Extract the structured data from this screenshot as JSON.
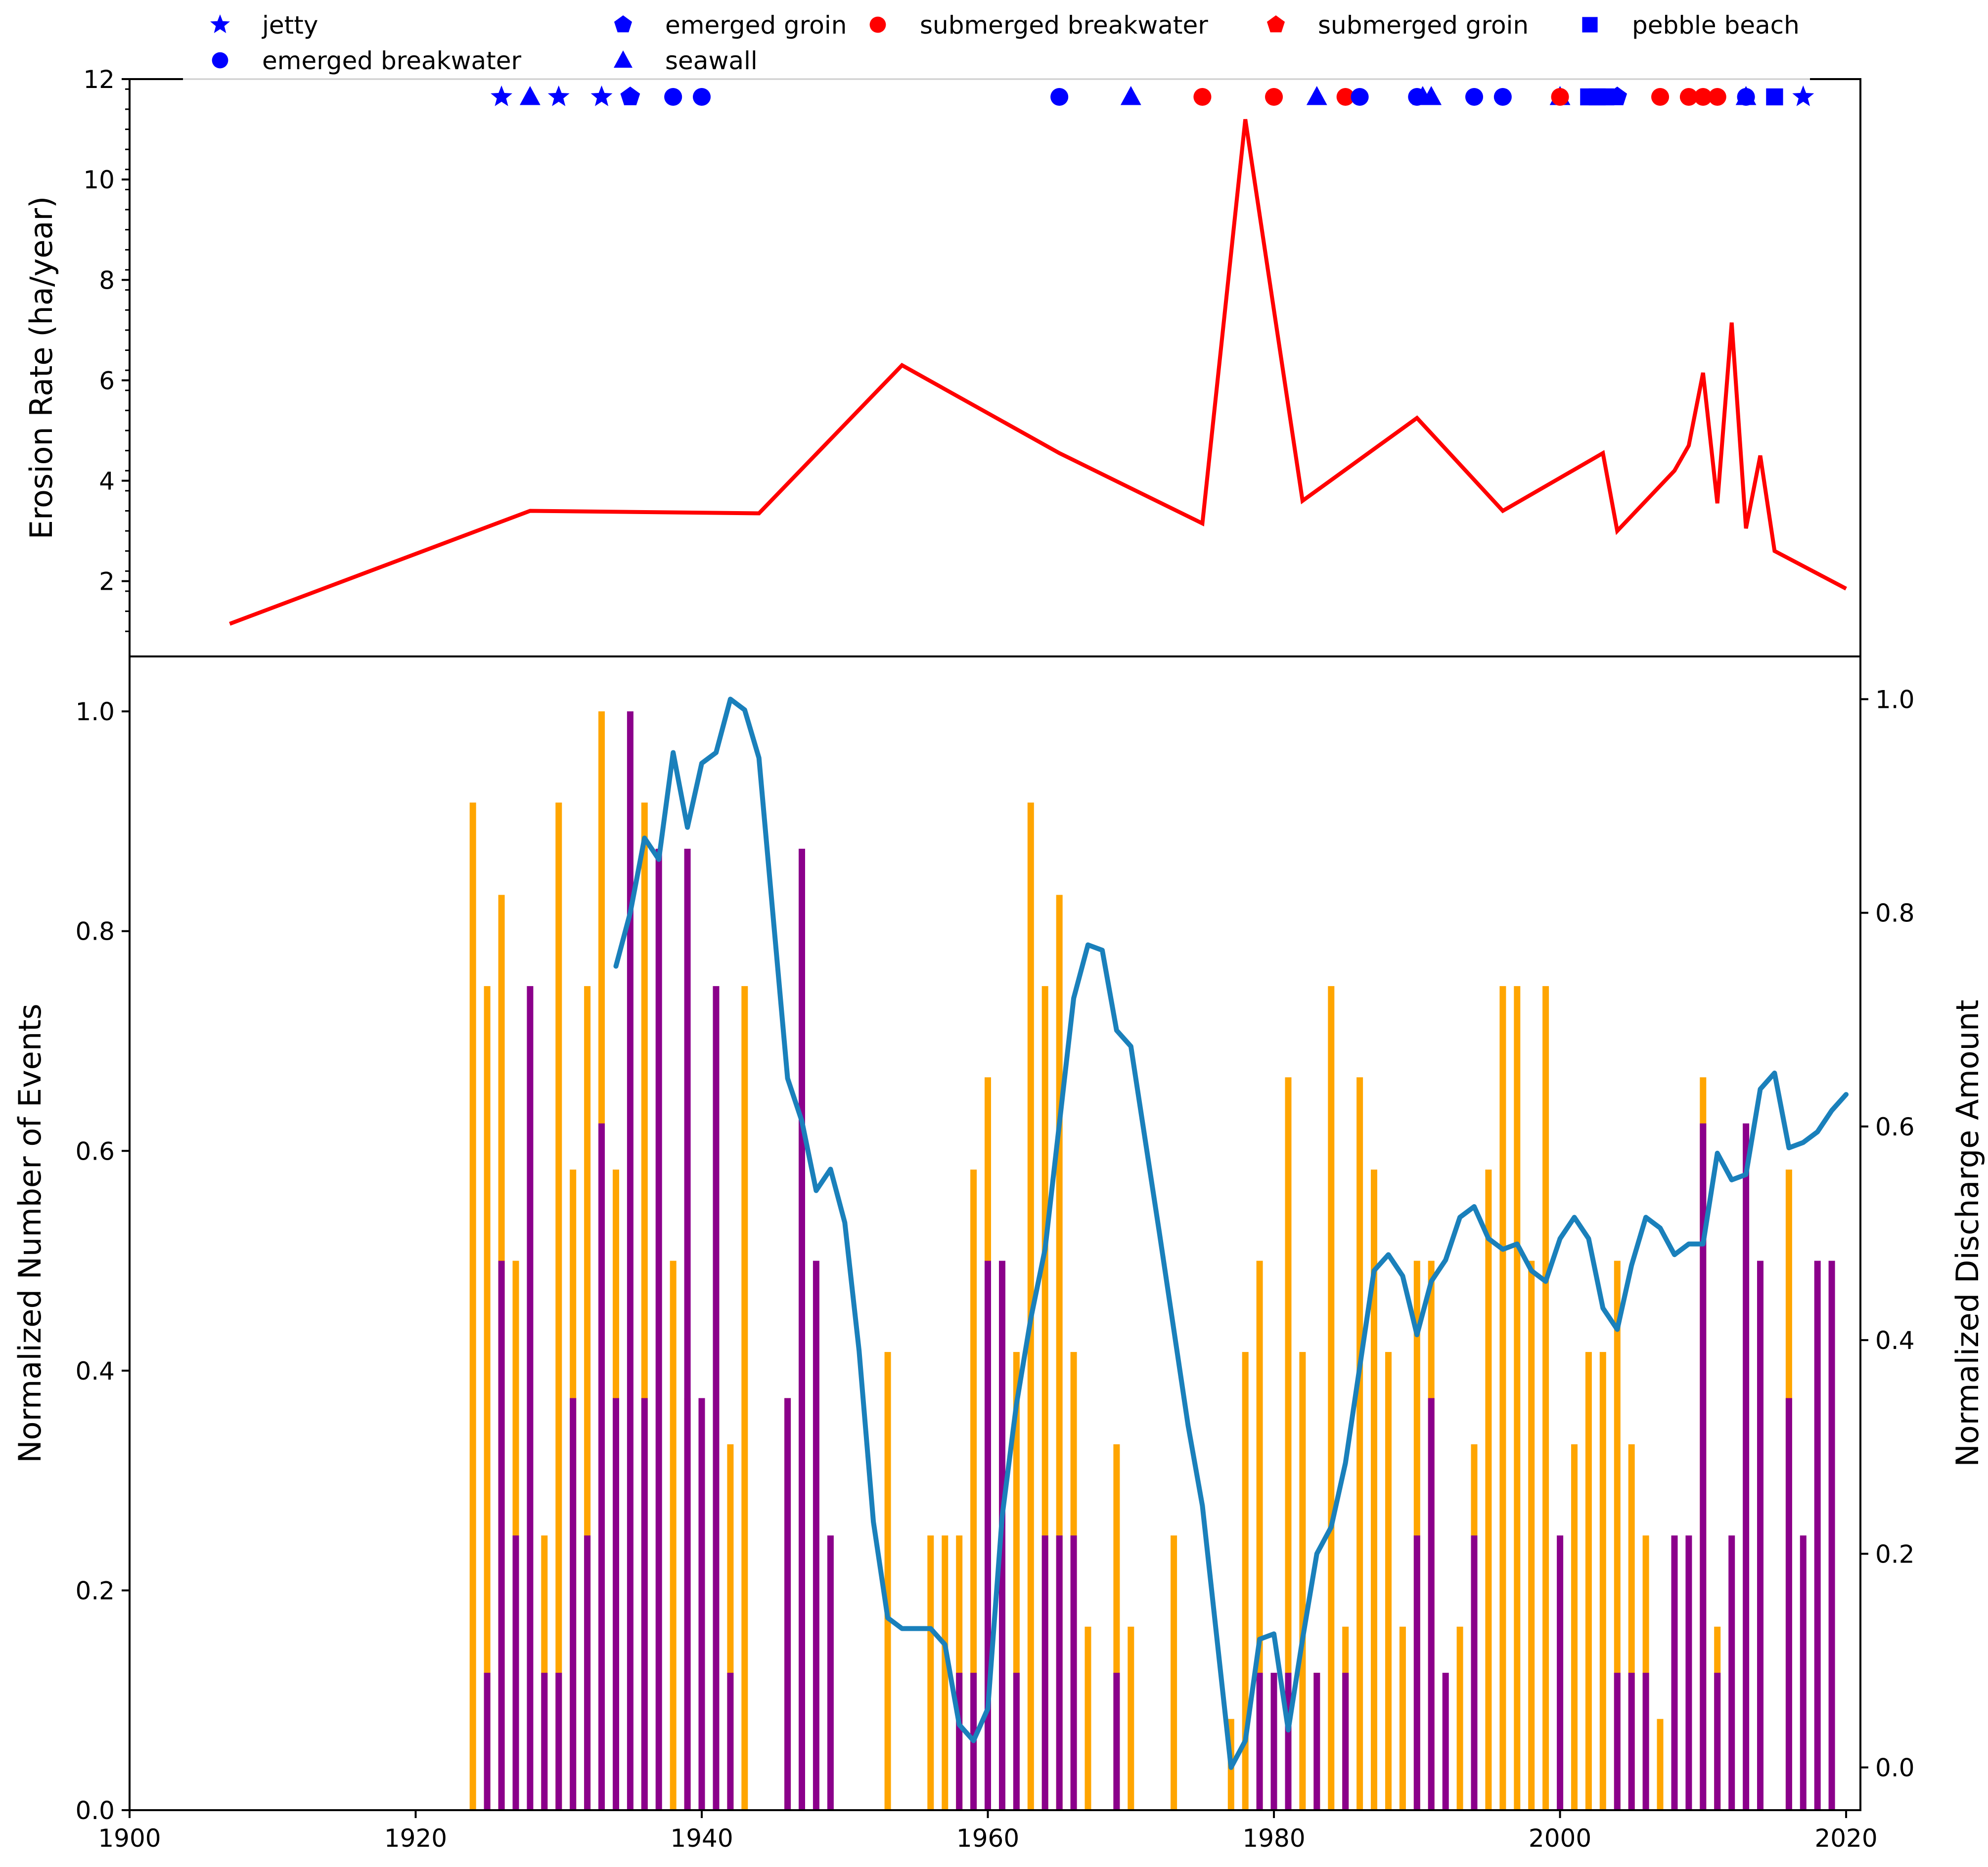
{
  "colors": {
    "structure_blue": "#0000ff",
    "structure_red": "#ff0000",
    "erosion_line": "#ff0000",
    "bar_orange": "#ffa500",
    "bar_purple": "#8b008b",
    "discharge_line": "#1a80bb"
  },
  "chart_data": [
    {
      "type": "line",
      "role": "top-panel",
      "ylabel": "Erosion Rate (ha/year)",
      "xlim": [
        1900,
        2021
      ],
      "ylim": [
        0.5,
        12
      ],
      "yticks": [
        2,
        4,
        6,
        8,
        10,
        12
      ],
      "legend_position": "top, above the plot",
      "legend": [
        {
          "name": "jetty",
          "marker": "star",
          "color": "#0000ff"
        },
        {
          "name": "emerged breakwater",
          "marker": "circle",
          "color": "#0000ff"
        },
        {
          "name": "emerged groin",
          "marker": "pentagon",
          "color": "#0000ff"
        },
        {
          "name": "seawall",
          "marker": "triangle",
          "color": "#0000ff"
        },
        {
          "name": "submerged breakwater",
          "marker": "circle",
          "color": "#ff0000"
        },
        {
          "name": "submerged groin",
          "marker": "pentagon",
          "color": "#ff0000"
        },
        {
          "name": "pebble beach",
          "marker": "square",
          "color": "#0000ff"
        }
      ],
      "series": [
        {
          "name": "Erosion Rate",
          "x": [
            1907,
            1928,
            1944,
            1954,
            1965,
            1975,
            1978,
            1982,
            1990,
            1996,
            2003,
            2004,
            2008,
            2009,
            2010,
            2011,
            2012,
            2013,
            2014,
            2015,
            2020
          ],
          "y": [
            1.15,
            3.4,
            3.35,
            6.3,
            4.55,
            3.15,
            11.2,
            3.6,
            5.25,
            3.4,
            4.55,
            3.0,
            4.2,
            4.7,
            6.15,
            3.55,
            7.15,
            3.05,
            4.5,
            2.6,
            1.85
          ]
        }
      ],
      "structures": [
        {
          "year": 1926,
          "type": "jetty"
        },
        {
          "year": 1928,
          "type": "seawall"
        },
        {
          "year": 1930,
          "type": "jetty"
        },
        {
          "year": 1933,
          "type": "jetty"
        },
        {
          "year": 1935,
          "type": "emerged groin"
        },
        {
          "year": 1938,
          "type": "emerged breakwater"
        },
        {
          "year": 1940,
          "type": "emerged breakwater"
        },
        {
          "year": 1965,
          "type": "emerged breakwater"
        },
        {
          "year": 1970,
          "type": "seawall"
        },
        {
          "year": 1975,
          "type": "submerged breakwater"
        },
        {
          "year": 1980,
          "type": "submerged breakwater"
        },
        {
          "year": 1983,
          "type": "seawall"
        },
        {
          "year": 1985,
          "type": "submerged breakwater"
        },
        {
          "year": 1986,
          "type": "emerged breakwater"
        },
        {
          "year": 1990,
          "type": "emerged breakwater"
        },
        {
          "year": 1990.4,
          "type": "seawall"
        },
        {
          "year": 1991,
          "type": "seawall"
        },
        {
          "year": 1994,
          "type": "emerged breakwater"
        },
        {
          "year": 1996,
          "type": "emerged breakwater"
        },
        {
          "year": 2000,
          "type": "seawall"
        },
        {
          "year": 2000,
          "type": "submerged breakwater"
        },
        {
          "year": 2002,
          "type": "pebble beach"
        },
        {
          "year": 2002.6,
          "type": "pebble beach"
        },
        {
          "year": 2003.2,
          "type": "pebble beach"
        },
        {
          "year": 2004,
          "type": "emerged groin"
        },
        {
          "year": 2007,
          "type": "submerged breakwater"
        },
        {
          "year": 2009,
          "type": "submerged breakwater"
        },
        {
          "year": 2010,
          "type": "submerged breakwater"
        },
        {
          "year": 2011,
          "type": "submerged breakwater"
        },
        {
          "year": 2013,
          "type": "seawall"
        },
        {
          "year": 2013,
          "type": "emerged breakwater"
        },
        {
          "year": 2015,
          "type": "pebble beach"
        },
        {
          "year": 2017,
          "type": "jetty"
        }
      ]
    },
    {
      "type": "bar",
      "role": "bottom-panel",
      "ylabel": "Normalized Number of Events",
      "y2label": "Normalized Discharge Amount",
      "xlim": [
        1900,
        2021
      ],
      "ylim": [
        0,
        1.05
      ],
      "y2lim": [
        -0.04,
        1.04
      ],
      "xticks": [
        1900,
        1920,
        1940,
        1960,
        1980,
        2000,
        2020
      ],
      "xtick_labels": [
        "1900",
        "1920",
        "1940",
        "1960",
        "1980",
        "2000",
        "2020"
      ],
      "yticks": [
        0.0,
        0.2,
        0.4,
        0.6,
        0.8,
        1.0
      ],
      "ytick_labels": [
        "0.0",
        "0.2",
        "0.4",
        "0.6",
        "0.8",
        "1.0"
      ],
      "y2ticks": [
        0.0,
        0.2,
        0.4,
        0.6,
        0.8,
        1.0
      ],
      "y2tick_labels": [
        "0.0",
        "0.2",
        "0.4",
        "0.6",
        "0.8",
        "1.0"
      ],
      "bar_series": [
        {
          "name": "orange",
          "color": "#ffa500",
          "x": [
            1924,
            1925,
            1926,
            1927,
            1929,
            1930,
            1931,
            1932,
            1933,
            1934,
            1936,
            1938,
            1939,
            1942,
            1943,
            1946,
            1953,
            1956,
            1957,
            1958,
            1959,
            1960,
            1962,
            1963,
            1964,
            1965,
            1966,
            1967,
            1969,
            1970,
            1973,
            1977,
            1978,
            1979,
            1981,
            1982,
            1983,
            1984,
            1985,
            1986,
            1987,
            1988,
            1989,
            1990,
            1991,
            1993,
            1994,
            1995,
            1996,
            1997,
            1998,
            1999,
            2001,
            2002,
            2003,
            2004,
            2005,
            2006,
            2007,
            2010,
            2011,
            2016
          ],
          "values": [
            0.917,
            0.75,
            0.833,
            0.5,
            0.25,
            0.917,
            0.583,
            0.75,
            1.0,
            0.583,
            0.917,
            0.5,
            0.375,
            0.333,
            0.75,
            0.375,
            0.417,
            0.25,
            0.25,
            0.25,
            0.583,
            0.667,
            0.417,
            0.917,
            0.75,
            0.833,
            0.417,
            0.167,
            0.333,
            0.167,
            0.25,
            0.083,
            0.417,
            0.5,
            0.667,
            0.417,
            0.125,
            0.75,
            0.167,
            0.667,
            0.583,
            0.417,
            0.167,
            0.5,
            0.5,
            0.167,
            0.333,
            0.583,
            0.75,
            0.75,
            0.5,
            0.75,
            0.333,
            0.417,
            0.417,
            0.5,
            0.333,
            0.25,
            0.083,
            0.667,
            0.167,
            0.583
          ]
        },
        {
          "name": "purple",
          "color": "#8b008b",
          "x": [
            1925,
            1926,
            1927,
            1928,
            1929,
            1930,
            1931,
            1932,
            1933,
            1934,
            1935,
            1936,
            1937,
            1939,
            1940,
            1941,
            1942,
            1946,
            1947,
            1948,
            1949,
            1958,
            1959,
            1960,
            1961,
            1962,
            1964,
            1965,
            1966,
            1969,
            1979,
            1980,
            1981,
            1983,
            1985,
            1990,
            1991,
            1992,
            1994,
            2000,
            2004,
            2005,
            2006,
            2008,
            2009,
            2010,
            2011,
            2012,
            2013,
            2014,
            2016,
            2017,
            2018,
            2019
          ],
          "values": [
            0.125,
            0.5,
            0.25,
            0.75,
            0.125,
            0.125,
            0.375,
            0.25,
            0.625,
            0.375,
            1.0,
            0.375,
            0.875,
            0.875,
            0.375,
            0.75,
            0.125,
            0.375,
            0.875,
            0.5,
            0.25,
            0.125,
            0.125,
            0.5,
            0.5,
            0.125,
            0.25,
            0.25,
            0.25,
            0.125,
            0.125,
            0.125,
            0.125,
            0.125,
            0.125,
            0.25,
            0.375,
            0.125,
            0.25,
            0.25,
            0.125,
            0.125,
            0.125,
            0.25,
            0.25,
            0.625,
            0.125,
            0.25,
            0.625,
            0.5,
            0.375,
            0.25,
            0.5,
            0.5
          ]
        }
      ],
      "line_series": [
        {
          "name": "Normalized Discharge Amount",
          "color": "#1a80bb",
          "x": [
            1934,
            1935,
            1936,
            1937,
            1938,
            1939,
            1940,
            1941,
            1942,
            1943,
            1944,
            1946,
            1947,
            1948,
            1949,
            1950,
            1951,
            1952,
            1953,
            1954,
            1955,
            1956,
            1957,
            1958,
            1959,
            1960,
            1961,
            1962,
            1963,
            1964,
            1966,
            1967,
            1968,
            1969,
            1970,
            1972,
            1974,
            1975,
            1977,
            1978,
            1979,
            1980,
            1981,
            1982,
            1983,
            1984,
            1985,
            1986,
            1987,
            1988,
            1989,
            1990,
            1991,
            1992,
            1993,
            1994,
            1995,
            1996,
            1997,
            1998,
            1999,
            2000,
            2001,
            2002,
            2003,
            2004,
            2005,
            2006,
            2007,
            2008,
            2009,
            2010,
            2011,
            2012,
            2013,
            2014,
            2015,
            2016,
            2017,
            2018,
            2019,
            2020
          ],
          "y": [
            0.75,
            0.8,
            0.87,
            0.85,
            0.95,
            0.88,
            0.94,
            0.95,
            1.0,
            0.99,
            0.945,
            0.645,
            0.605,
            0.54,
            0.56,
            0.51,
            0.39,
            0.23,
            0.14,
            0.13,
            0.13,
            0.13,
            0.115,
            0.04,
            0.025,
            0.055,
            0.235,
            0.34,
            0.42,
            0.485,
            0.72,
            0.77,
            0.765,
            0.69,
            0.675,
            0.5,
            0.32,
            0.245,
            0.0,
            0.025,
            0.12,
            0.125,
            0.035,
            0.12,
            0.2,
            0.225,
            0.285,
            0.375,
            0.465,
            0.48,
            0.46,
            0.405,
            0.455,
            0.475,
            0.515,
            0.525,
            0.495,
            0.485,
            0.49,
            0.465,
            0.455,
            0.495,
            0.515,
            0.495,
            0.43,
            0.41,
            0.47,
            0.515,
            0.505,
            0.48,
            0.49,
            0.49,
            0.575,
            0.55,
            0.555,
            0.635,
            0.65,
            0.58,
            0.585,
            0.595,
            0.615,
            0.63
          ]
        }
      ]
    }
  ]
}
